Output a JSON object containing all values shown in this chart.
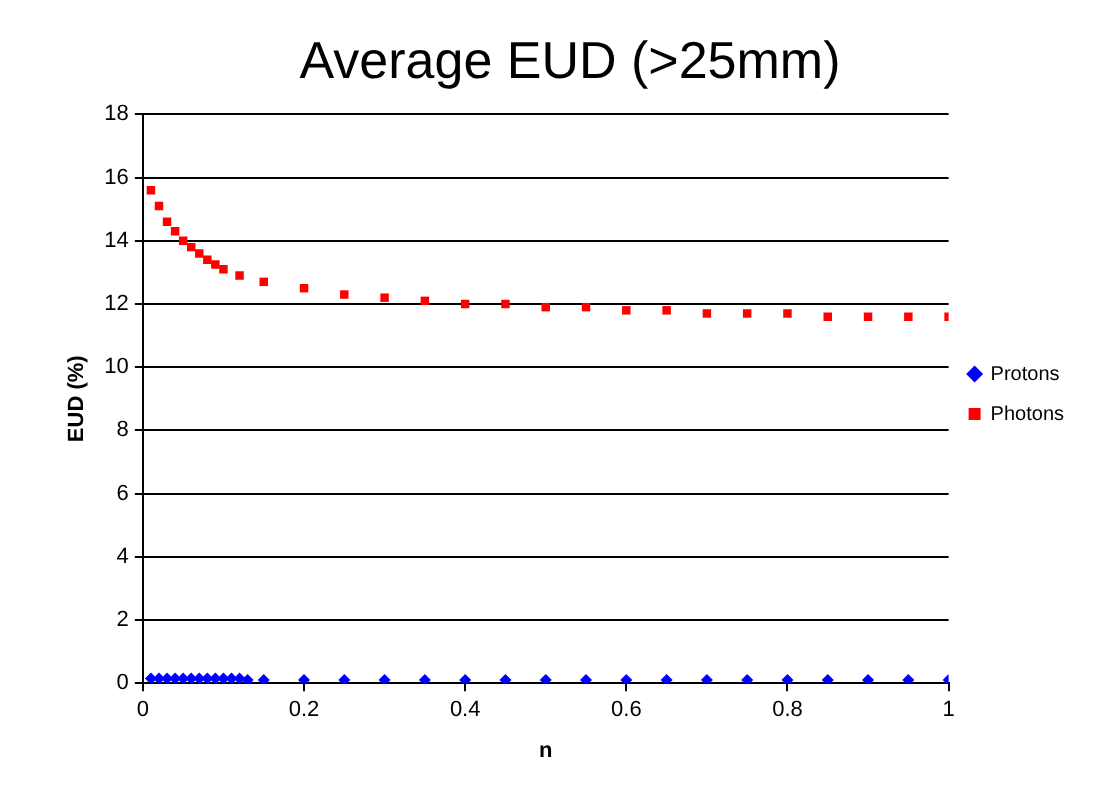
{
  "chart_data": {
    "type": "scatter",
    "title": "Average EUD (>25mm)",
    "xlabel": "n",
    "ylabel": "EUD (%)",
    "xlim": [
      0,
      1
    ],
    "xticks": [
      0,
      0.2,
      0.4,
      0.6,
      0.8,
      1
    ],
    "ylim": [
      0,
      18
    ],
    "yticks": [
      0,
      2,
      4,
      6,
      8,
      10,
      12,
      14,
      16,
      18
    ],
    "grid": "y",
    "legend": "right",
    "series": [
      {
        "name": "Protons",
        "color": "#0000ff",
        "marker": "diamond",
        "x": [
          0.01,
          0.02,
          0.03,
          0.04,
          0.05,
          0.06,
          0.07,
          0.08,
          0.09,
          0.1,
          0.11,
          0.12,
          0.13,
          0.15,
          0.2,
          0.25,
          0.3,
          0.35,
          0.4,
          0.45,
          0.5,
          0.55,
          0.6,
          0.65,
          0.7,
          0.75,
          0.8,
          0.85,
          0.9,
          0.95,
          1.0
        ],
        "values": [
          0.15,
          0.15,
          0.15,
          0.15,
          0.15,
          0.15,
          0.15,
          0.15,
          0.15,
          0.15,
          0.15,
          0.15,
          0.1,
          0.1,
          0.1,
          0.1,
          0.1,
          0.1,
          0.1,
          0.1,
          0.1,
          0.1,
          0.1,
          0.1,
          0.1,
          0.1,
          0.1,
          0.1,
          0.1,
          0.1,
          0.1
        ]
      },
      {
        "name": "Photons",
        "color": "#ff0000",
        "marker": "square",
        "x": [
          0.01,
          0.02,
          0.03,
          0.04,
          0.05,
          0.06,
          0.07,
          0.08,
          0.09,
          0.1,
          0.12,
          0.15,
          0.2,
          0.25,
          0.3,
          0.35,
          0.4,
          0.45,
          0.5,
          0.55,
          0.6,
          0.65,
          0.7,
          0.75,
          0.8,
          0.85,
          0.9,
          0.95,
          1.0
        ],
        "values": [
          15.6,
          15.1,
          14.6,
          14.3,
          14.0,
          13.8,
          13.6,
          13.4,
          13.25,
          13.1,
          12.9,
          12.7,
          12.5,
          12.3,
          12.2,
          12.1,
          12.0,
          12.0,
          11.9,
          11.9,
          11.8,
          11.8,
          11.7,
          11.7,
          11.7,
          11.6,
          11.6,
          11.6,
          11.6
        ]
      }
    ]
  }
}
